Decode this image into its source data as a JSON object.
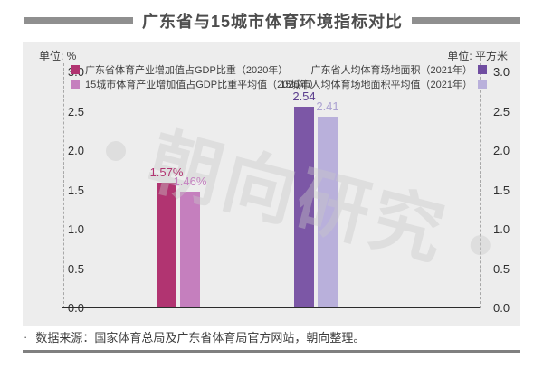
{
  "header": {
    "title": "广东省与15城市体育环境指标对比"
  },
  "panel": {
    "unit_left": "单位: %",
    "unit_right": "单位: 平方米"
  },
  "legend_left": [
    {
      "label": "广东省体育产业增加值占GDP比重（2020年）",
      "color": "#b13471"
    },
    {
      "label": "15城市体育产业增加值占GDP比重平均值（2020年）",
      "color": "#c57fbe"
    }
  ],
  "legend_right": [
    {
      "label": "广东省人均体育场地面积（2021年）",
      "color": "#6f4da0"
    },
    {
      "label": "15城市人均体育场地面积平均值（2021年）",
      "color": "#b9b0db"
    }
  ],
  "chart_data": {
    "type": "bar",
    "title": "广东省与15城市体育环境指标对比",
    "ylim": [
      0,
      3
    ],
    "yticks": [
      "3.0",
      "2.5",
      "2.0",
      "1.5",
      "1.0",
      "0.5",
      "0.0"
    ],
    "grid": false,
    "legend_position": "top",
    "groups": [
      {
        "axis": "left",
        "unit": "%",
        "bars": [
          {
            "series": "广东省体育产业增加值占GDP比重（2020年）",
            "value": 1.57,
            "display": "1.57%",
            "color": "#b13471",
            "label_color": "#b13471"
          },
          {
            "series": "15城市体育产业增加值占GDP比重平均值（2020年）",
            "value": 1.46,
            "display": "1.46%",
            "color": "#c57fbe",
            "label_color": "#c583c1"
          }
        ]
      },
      {
        "axis": "right",
        "unit": "平方米",
        "bars": [
          {
            "series": "广东省人均体育场地面积（2021年）",
            "value": 2.54,
            "display": "2.54",
            "color": "#7c57a6",
            "label_color": "#5c3e8e"
          },
          {
            "series": "15城市人均体育场地面积平均值（2021年）",
            "value": 2.41,
            "display": "2.41",
            "color": "#b9b0db",
            "label_color": "#aba1d1"
          }
        ]
      }
    ]
  },
  "watermark": {
    "text": "朝向研究"
  },
  "footer": {
    "bullet": "·",
    "source": "数据来源：国家体育总局及广东省体育局官方网站，朝向整理。"
  }
}
